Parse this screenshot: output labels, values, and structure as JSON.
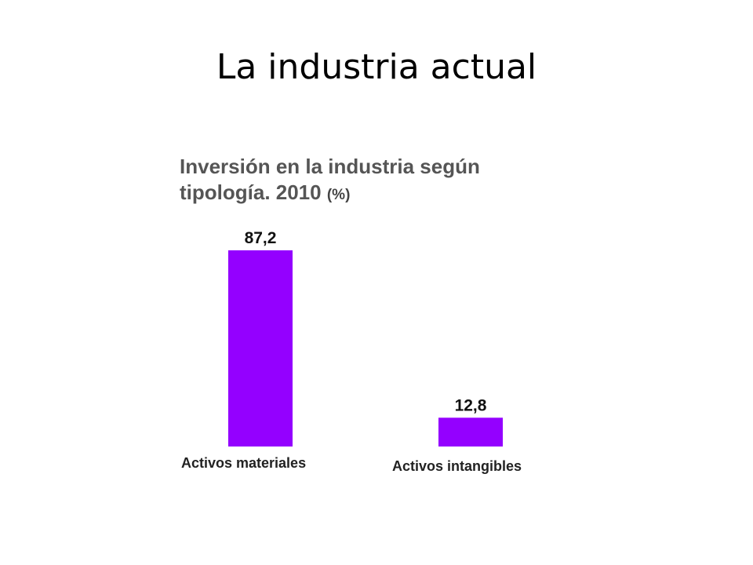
{
  "slide": {
    "title": "La industria actual"
  },
  "chart_data": {
    "type": "bar",
    "title": "Inversión en la industria según",
    "title_line2": "tipología. 2010",
    "unit": "(%)",
    "categories": [
      "Activos materiales",
      "Activos intangibles"
    ],
    "values": [
      87.2,
      12.8
    ],
    "value_labels": [
      "87,2",
      "12,8"
    ],
    "bar_color": "#9400ff",
    "ylim": [
      0,
      87.2
    ],
    "grid": false,
    "legend": "none"
  }
}
